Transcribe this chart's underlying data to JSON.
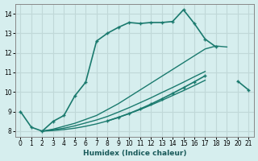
{
  "xlabel": "Humidex (Indice chaleur)",
  "bg_color": "#d6eeee",
  "grid_color": "#c0d8d8",
  "line_color": "#1a7a6e",
  "xlim": [
    -0.5,
    21.5
  ],
  "ylim": [
    7.7,
    14.5
  ],
  "xticks": [
    0,
    1,
    2,
    3,
    4,
    5,
    6,
    7,
    8,
    9,
    10,
    11,
    12,
    13,
    14,
    15,
    16,
    17,
    18,
    19,
    20,
    21
  ],
  "yticks": [
    8,
    9,
    10,
    11,
    12,
    13,
    14
  ],
  "series": [
    {
      "x": [
        0,
        1,
        2,
        3,
        4,
        5,
        6,
        7,
        8,
        9,
        10,
        11,
        12,
        13,
        14,
        15,
        16,
        17,
        18
      ],
      "y": [
        9.0,
        8.2,
        8.0,
        8.5,
        8.8,
        9.8,
        10.5,
        12.6,
        13.0,
        13.3,
        13.55,
        13.5,
        13.55,
        13.55,
        13.6,
        14.2,
        13.5,
        12.7,
        12.3
      ],
      "marker": true,
      "linewidth": 1.2
    },
    {
      "x": [
        2,
        3,
        4,
        5,
        6,
        7,
        8,
        9,
        10,
        11,
        12,
        13,
        14,
        15,
        16,
        17,
        18,
        19,
        20,
        21
      ],
      "y": [
        8.0,
        8.1,
        8.25,
        8.4,
        8.6,
        8.8,
        9.1,
        9.4,
        9.75,
        10.1,
        10.45,
        10.8,
        11.15,
        11.5,
        11.85,
        12.2,
        12.35,
        12.3,
        null,
        null
      ],
      "marker": false,
      "linewidth": 1.0
    },
    {
      "x": [
        2,
        3,
        4,
        5,
        6,
        7,
        8,
        9,
        10,
        11,
        12,
        13,
        14,
        15,
        16,
        17,
        18,
        19,
        20,
        21
      ],
      "y": [
        8.0,
        8.07,
        8.15,
        8.27,
        8.42,
        8.57,
        8.75,
        8.97,
        9.2,
        9.45,
        9.7,
        9.97,
        10.23,
        10.5,
        10.78,
        11.05,
        null,
        null,
        null,
        null
      ],
      "marker": false,
      "linewidth": 1.0
    },
    {
      "x": [
        2,
        3,
        4,
        5,
        6,
        7,
        8,
        9,
        10,
        11,
        12,
        13,
        14,
        15,
        16,
        17,
        18,
        19,
        20,
        21
      ],
      "y": [
        8.0,
        8.03,
        8.08,
        8.15,
        8.25,
        8.37,
        8.52,
        8.7,
        8.9,
        9.1,
        9.33,
        9.57,
        9.82,
        10.07,
        10.33,
        10.6,
        null,
        null,
        null,
        null
      ],
      "marker": false,
      "linewidth": 1.0
    },
    {
      "x": [
        8,
        9,
        10,
        11,
        12,
        13,
        14,
        15,
        16,
        17,
        18,
        19,
        20,
        21
      ],
      "y": [
        8.52,
        8.7,
        8.9,
        9.13,
        9.38,
        9.65,
        9.93,
        10.22,
        10.52,
        10.83,
        null,
        null,
        10.55,
        10.1
      ],
      "marker": true,
      "linewidth": 1.2
    }
  ]
}
